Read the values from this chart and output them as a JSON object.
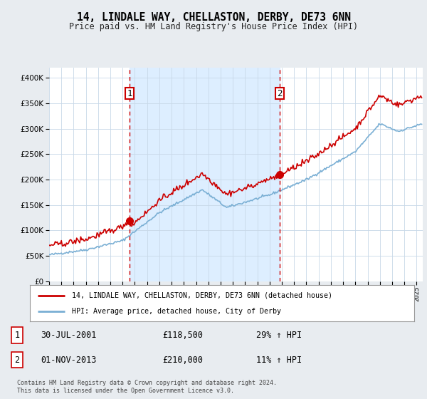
{
  "title": "14, LINDALE WAY, CHELLASTON, DERBY, DE73 6NN",
  "subtitle": "Price paid vs. HM Land Registry's House Price Index (HPI)",
  "transaction1_year": 2001.583,
  "transaction1_price": 118500,
  "transaction1_label": "30-JUL-2001",
  "transaction1_hpi": "29% ↑ HPI",
  "transaction2_year": 2013.833,
  "transaction2_price": 210000,
  "transaction2_label": "01-NOV-2013",
  "transaction2_hpi": "11% ↑ HPI",
  "legend_property": "14, LINDALE WAY, CHELLASTON, DERBY, DE73 6NN (detached house)",
  "legend_hpi": "HPI: Average price, detached house, City of Derby",
  "footer": "Contains HM Land Registry data © Crown copyright and database right 2024.\nThis data is licensed under the Open Government Licence v3.0.",
  "line_color_property": "#cc0000",
  "line_color_hpi": "#7aafd4",
  "vline_color": "#cc0000",
  "shade_color": "#ddeeff",
  "background_color": "#e8ecf0",
  "plot_bg_color": "#ffffff",
  "ylim_min": 0,
  "ylim_max": 420000,
  "xmin": 1995,
  "xmax": 2025.5
}
